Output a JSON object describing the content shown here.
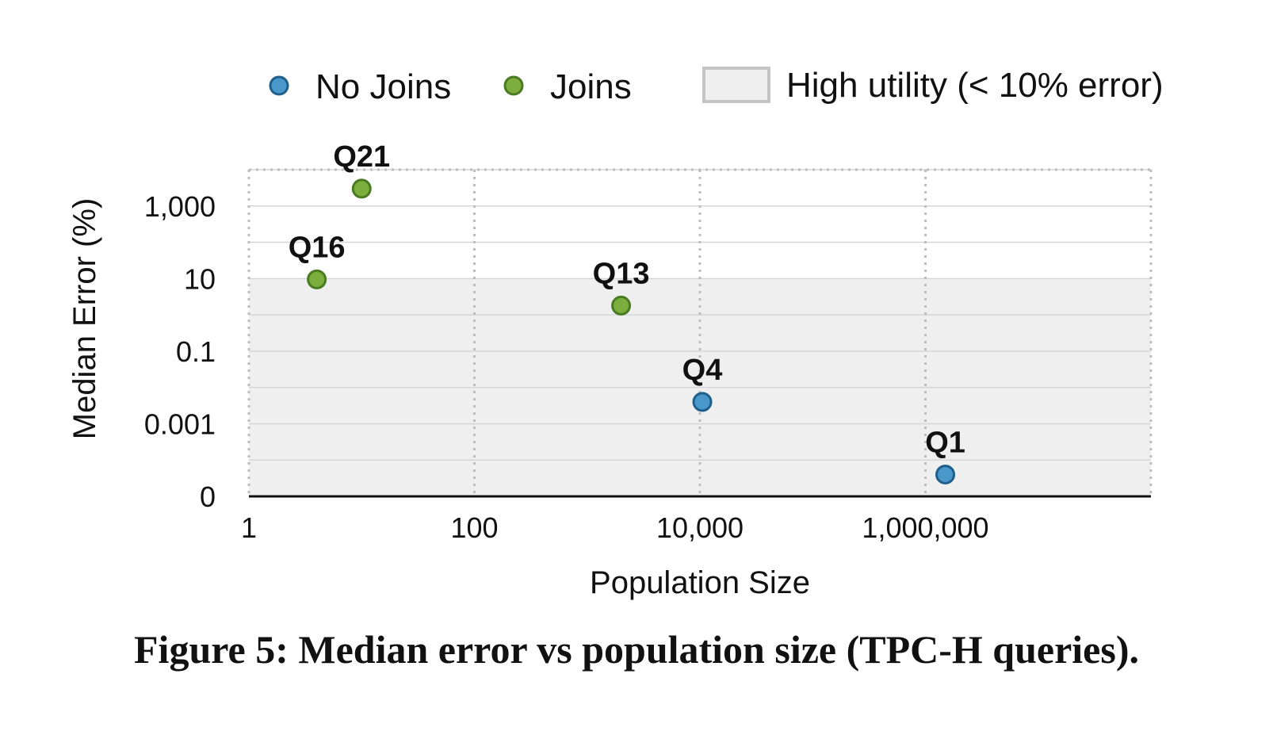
{
  "caption": "Figure 5: Median error vs population size (TPC-H queries).",
  "colors": {
    "no_joins": "#4a97c9",
    "no_joins_stroke": "#1f5f8b",
    "joins": "#7cae3e",
    "joins_stroke": "#4a7a22",
    "high_utility": "#efefef",
    "high_utility_stroke": "#c4c4c4",
    "grid": "#bdbdbd",
    "axis": "#111111"
  },
  "chart_data": {
    "type": "scatter",
    "xlabel": "Population Size",
    "ylabel": "Median Error (%)",
    "x_scale": "log",
    "y_scale": "log",
    "x_ticks": [
      {
        "value": 1,
        "label": "1"
      },
      {
        "value": 100,
        "label": "100"
      },
      {
        "value": 10000,
        "label": "10,000"
      },
      {
        "value": 1000000,
        "label": "1,000,000"
      }
    ],
    "y_ticks": [
      {
        "value": 1e-05,
        "label": "0"
      },
      {
        "value": 0.001,
        "label": "0.001"
      },
      {
        "value": 0.1,
        "label": "0.1"
      },
      {
        "value": 10,
        "label": "10"
      },
      {
        "value": 1000,
        "label": "1,000"
      }
    ],
    "xlim": [
      1,
      100000000
    ],
    "ylim": [
      1e-05,
      10000
    ],
    "grid": true,
    "legend_position": "top",
    "legend": [
      {
        "key": "no_joins",
        "label": "No Joins"
      },
      {
        "key": "joins",
        "label": "Joins"
      },
      {
        "key": "high_utility",
        "label": "High utility (< 10% error)"
      }
    ],
    "high_utility_threshold": 10,
    "series": [
      {
        "name": "No Joins",
        "key": "no_joins",
        "points": [
          {
            "label": "Q1",
            "x": 1500000,
            "y": 4e-05
          },
          {
            "label": "Q4",
            "x": 10500,
            "y": 0.004
          }
        ]
      },
      {
        "name": "Joins",
        "key": "joins",
        "points": [
          {
            "label": "Q16",
            "x": 4,
            "y": 9.5
          },
          {
            "label": "Q21",
            "x": 10,
            "y": 3000
          },
          {
            "label": "Q13",
            "x": 2000,
            "y": 1.8
          }
        ]
      }
    ]
  }
}
